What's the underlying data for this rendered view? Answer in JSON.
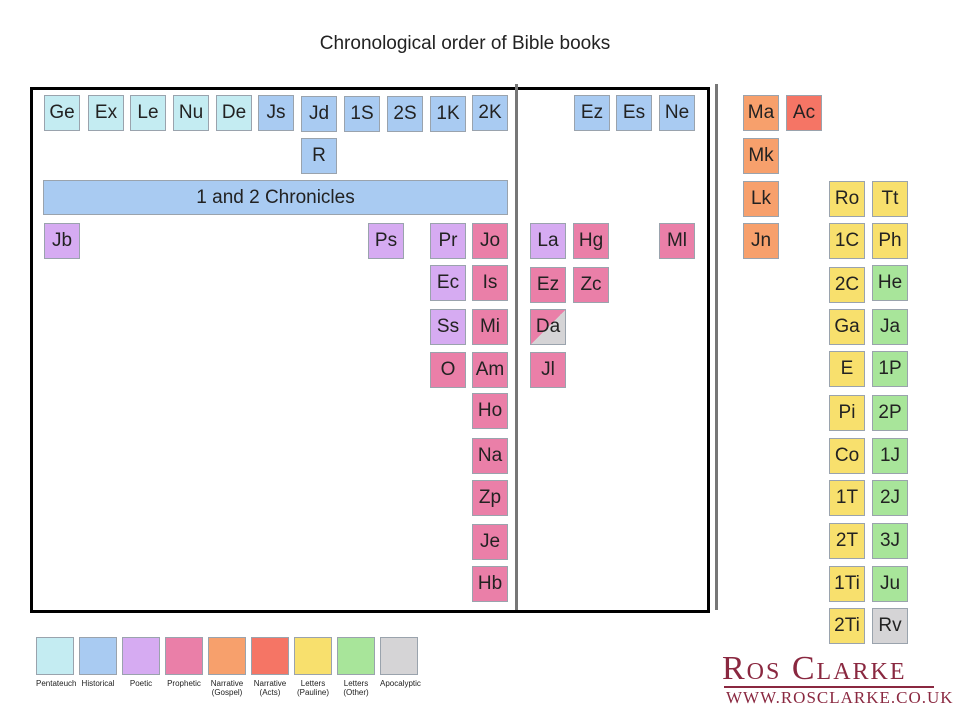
{
  "title": "Chronological order of Bible books",
  "colors": {
    "pentateuch": "#c4ecf2",
    "historical": "#a9cbf2",
    "poetic": "#d6abf2",
    "prophetic": "#ea7fa8",
    "gospel": "#f7a06c",
    "acts": "#f57565",
    "pauline": "#f8e06d",
    "other": "#a8e59a",
    "apocalyptic": "#d5d4d6"
  },
  "books": [
    {
      "label": "Ge",
      "cat": "pentateuch"
    },
    {
      "label": "Ex",
      "cat": "pentateuch"
    },
    {
      "label": "Le",
      "cat": "pentateuch"
    },
    {
      "label": "Nu",
      "cat": "pentateuch"
    },
    {
      "label": "De",
      "cat": "pentateuch"
    },
    {
      "label": "Js",
      "cat": "historical"
    },
    {
      "label": "Jd",
      "cat": "historical"
    },
    {
      "label": "1S",
      "cat": "historical"
    },
    {
      "label": "2S",
      "cat": "historical"
    },
    {
      "label": "1K",
      "cat": "historical"
    },
    {
      "label": "2K",
      "cat": "historical"
    },
    {
      "label": "R",
      "cat": "historical"
    },
    {
      "label": "Ez",
      "cat": "historical"
    },
    {
      "label": "Es",
      "cat": "historical"
    },
    {
      "label": "Ne",
      "cat": "historical"
    },
    {
      "label": "Jb",
      "cat": "poetic"
    },
    {
      "label": "Ps",
      "cat": "poetic"
    },
    {
      "label": "Pr",
      "cat": "poetic"
    },
    {
      "label": "Ec",
      "cat": "poetic"
    },
    {
      "label": "Ss",
      "cat": "poetic"
    },
    {
      "label": "La",
      "cat": "poetic"
    },
    {
      "label": "Jo",
      "cat": "prophetic"
    },
    {
      "label": "Is",
      "cat": "prophetic"
    },
    {
      "label": "Mi",
      "cat": "prophetic"
    },
    {
      "label": "O",
      "cat": "prophetic"
    },
    {
      "label": "Am",
      "cat": "prophetic"
    },
    {
      "label": "Ho",
      "cat": "prophetic"
    },
    {
      "label": "Na",
      "cat": "prophetic"
    },
    {
      "label": "Zp",
      "cat": "prophetic"
    },
    {
      "label": "Je",
      "cat": "prophetic"
    },
    {
      "label": "Hb",
      "cat": "prophetic"
    },
    {
      "label": "Hg",
      "cat": "prophetic"
    },
    {
      "label": "Ml",
      "cat": "prophetic"
    },
    {
      "label": "Ez",
      "cat": "prophetic"
    },
    {
      "label": "Zc",
      "cat": "prophetic"
    },
    {
      "label": "Da",
      "cat": "prophetic/apocalyptic"
    },
    {
      "label": "Jl",
      "cat": "prophetic"
    },
    {
      "label": "Ma",
      "cat": "gospel"
    },
    {
      "label": "Mk",
      "cat": "gospel"
    },
    {
      "label": "Lk",
      "cat": "gospel"
    },
    {
      "label": "Jn",
      "cat": "gospel"
    },
    {
      "label": "Ac",
      "cat": "acts"
    },
    {
      "label": "Ro",
      "cat": "pauline"
    },
    {
      "label": "1C",
      "cat": "pauline"
    },
    {
      "label": "2C",
      "cat": "pauline"
    },
    {
      "label": "Ga",
      "cat": "pauline"
    },
    {
      "label": "E",
      "cat": "pauline"
    },
    {
      "label": "Pi",
      "cat": "pauline"
    },
    {
      "label": "Co",
      "cat": "pauline"
    },
    {
      "label": "1T",
      "cat": "pauline"
    },
    {
      "label": "2T",
      "cat": "pauline"
    },
    {
      "label": "1Ti",
      "cat": "pauline"
    },
    {
      "label": "2Ti",
      "cat": "pauline"
    },
    {
      "label": "Tt",
      "cat": "pauline"
    },
    {
      "label": "Ph",
      "cat": "pauline"
    },
    {
      "label": "He",
      "cat": "other"
    },
    {
      "label": "Ja",
      "cat": "other"
    },
    {
      "label": "1P",
      "cat": "other"
    },
    {
      "label": "2P",
      "cat": "other"
    },
    {
      "label": "1J",
      "cat": "other"
    },
    {
      "label": "2J",
      "cat": "other"
    },
    {
      "label": "3J",
      "cat": "other"
    },
    {
      "label": "Ju",
      "cat": "other"
    },
    {
      "label": "Rv",
      "cat": "apocalyptic"
    }
  ],
  "chronicles_label": "1 and 2 Chronicles",
  "legend": [
    {
      "label": "Pentateuch",
      "cat": "pentateuch"
    },
    {
      "label": "Historical",
      "cat": "historical"
    },
    {
      "label": "Poetic",
      "cat": "poetic"
    },
    {
      "label": "Prophetic",
      "cat": "prophetic"
    },
    {
      "label": "Narrative\n(Gospel)",
      "cat": "gospel"
    },
    {
      "label": "Narrative\n(Acts)",
      "cat": "acts"
    },
    {
      "label": "Letters\n(Pauline)",
      "cat": "pauline"
    },
    {
      "label": "Letters\n(Other)",
      "cat": "other"
    },
    {
      "label": "Apocalyptic",
      "cat": "apocalyptic"
    }
  ],
  "logo": {
    "name": "Ros Clarke",
    "url": "WWW.ROSCLARKE.CO.UK"
  }
}
